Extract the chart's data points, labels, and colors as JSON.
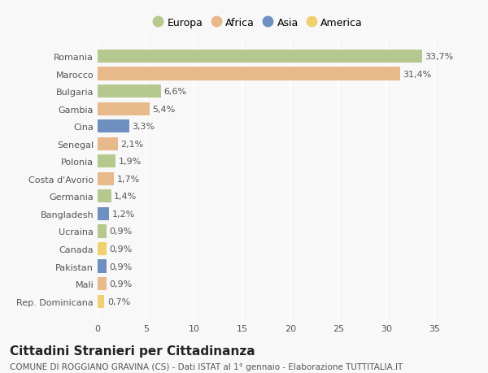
{
  "countries": [
    "Romania",
    "Marocco",
    "Bulgaria",
    "Gambia",
    "Cina",
    "Senegal",
    "Polonia",
    "Costa d'Avorio",
    "Germania",
    "Bangladesh",
    "Ucraina",
    "Canada",
    "Pakistan",
    "Mali",
    "Rep. Dominicana"
  ],
  "values": [
    33.7,
    31.4,
    6.6,
    5.4,
    3.3,
    2.1,
    1.9,
    1.7,
    1.4,
    1.2,
    0.9,
    0.9,
    0.9,
    0.9,
    0.7
  ],
  "labels": [
    "33,7%",
    "31,4%",
    "6,6%",
    "5,4%",
    "3,3%",
    "2,1%",
    "1,9%",
    "1,7%",
    "1,4%",
    "1,2%",
    "0,9%",
    "0,9%",
    "0,9%",
    "0,9%",
    "0,7%"
  ],
  "continents": [
    "Europa",
    "Africa",
    "Europa",
    "Africa",
    "Asia",
    "Africa",
    "Europa",
    "Africa",
    "Europa",
    "Asia",
    "Europa",
    "America",
    "Asia",
    "Africa",
    "America"
  ],
  "colors": {
    "Europa": "#b5c98e",
    "Africa": "#e8b98a",
    "Asia": "#6e8fbf",
    "America": "#f0d070"
  },
  "title": "Cittadini Stranieri per Cittadinanza",
  "subtitle": "COMUNE DI ROGGIANO GRAVINA (CS) - Dati ISTAT al 1° gennaio - Elaborazione TUTTITALIA.IT",
  "xlim": [
    0,
    37
  ],
  "xticks": [
    0,
    5,
    10,
    15,
    20,
    25,
    30,
    35
  ],
  "background_color": "#f8f8f8",
  "grid_color": "#ffffff",
  "bar_height": 0.75,
  "label_fontsize": 8,
  "tick_fontsize": 8,
  "title_fontsize": 11,
  "subtitle_fontsize": 7.5
}
